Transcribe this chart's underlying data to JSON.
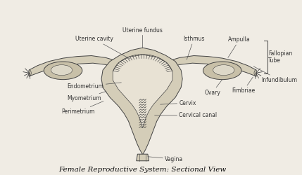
{
  "title": "Female Reproductive System: Sectional View",
  "bg_color": "#f0ece4",
  "line_color": "#444444",
  "fill_uterus": "#d4cdb8",
  "fill_inner": "#e8e2d4",
  "fill_ovary": "#c8c0a8",
  "fill_tube": "#d4cdb8",
  "labels": {
    "uterine_fundus": "Uterine fundus",
    "uterine_cavity": "Uterine cavity",
    "isthmus": "Isthmus",
    "ampulla": "Ampulla",
    "fallopian_tube": "Fallopian\nTube",
    "infundibulum": "Infundibulum",
    "ovary": "Ovary",
    "fimbriae": "Fimbriae",
    "endometrium": "Endometrium",
    "myometrium": "Myometrium",
    "perimetrium": "Perimetrium",
    "cervix": "Cervix",
    "cervical_canal": "Cervical canal",
    "vagina": "Vagina"
  },
  "title_fontsize": 7.5,
  "label_fontsize": 5.5
}
